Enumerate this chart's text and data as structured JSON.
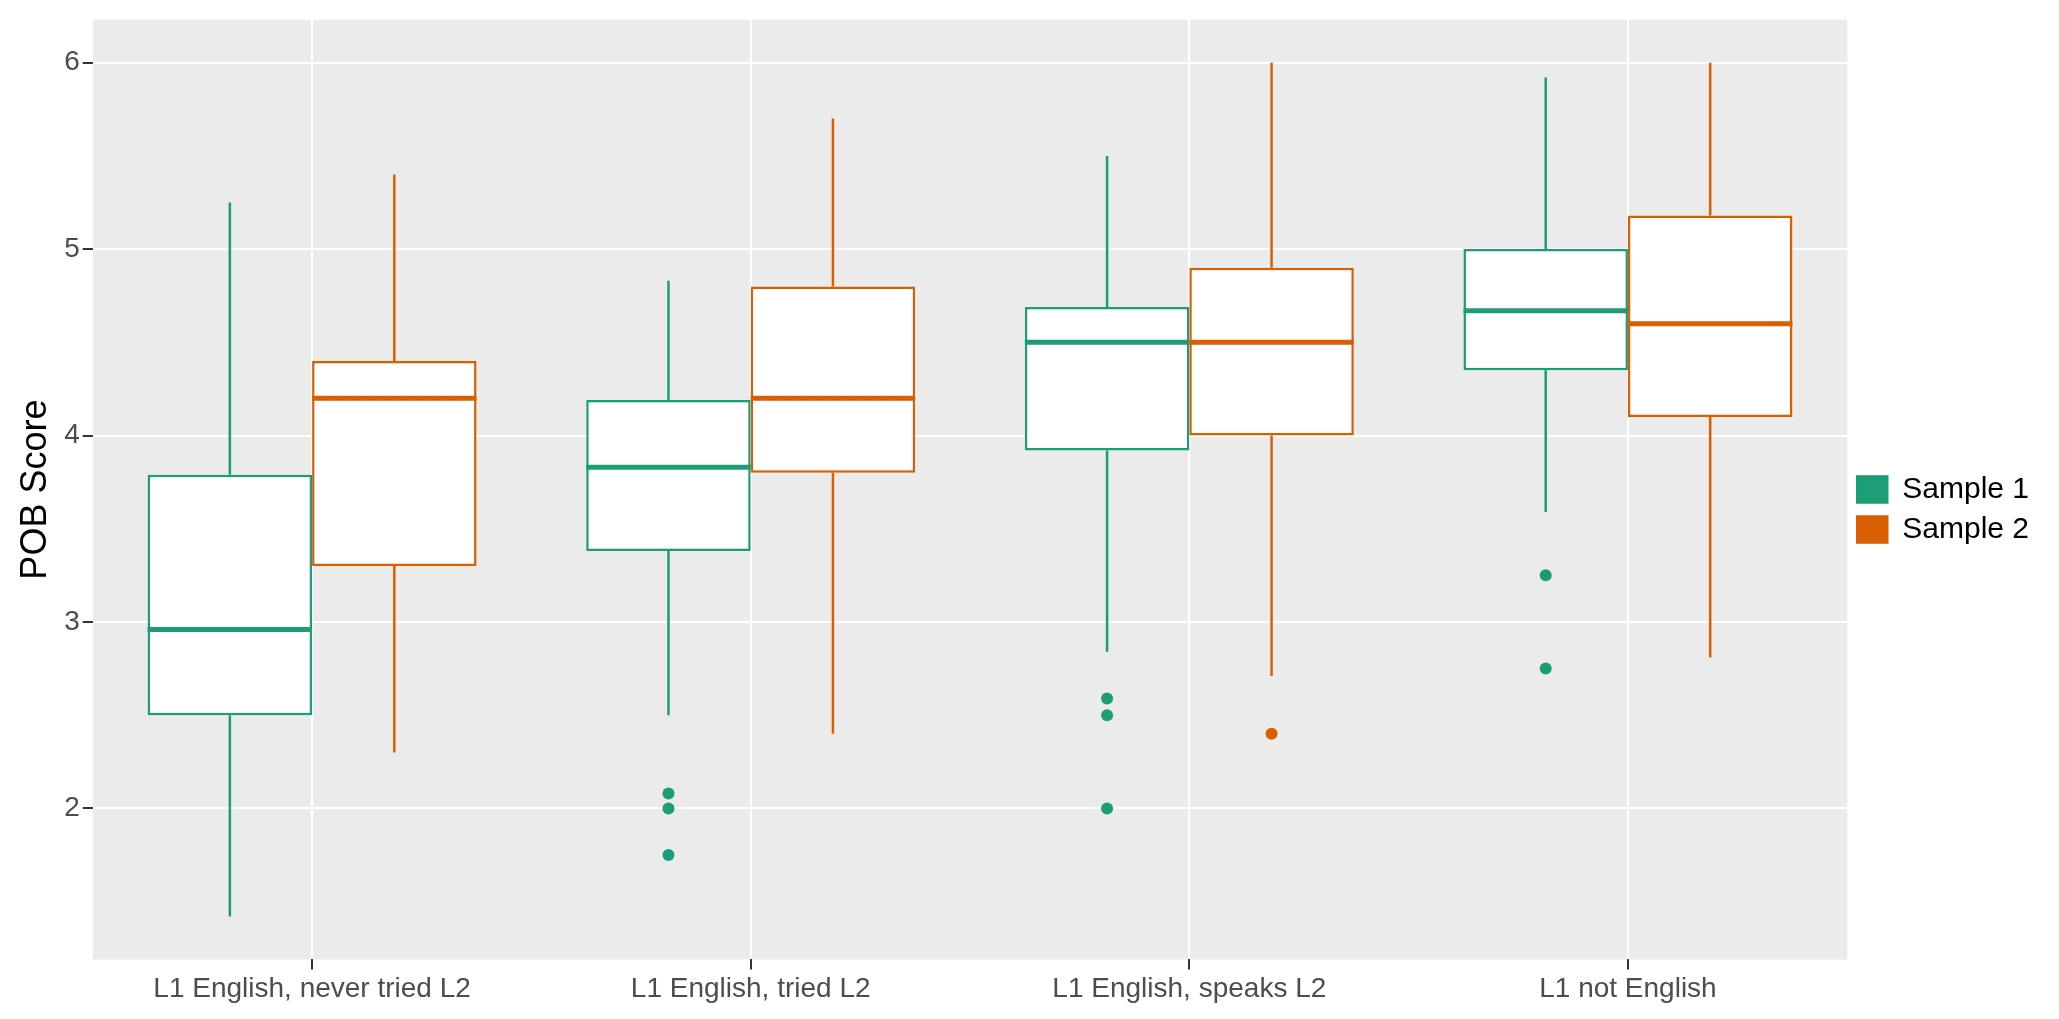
{
  "chart_data": {
    "type": "box",
    "ylabel": "POB Score",
    "categories": [
      "L1 English, never tried L2",
      "L1 English, tried L2",
      "L1 English, speaks L2",
      "L1 not English"
    ],
    "series": [
      {
        "name": "Sample 1",
        "color": "#1b9e77",
        "boxes": [
          {
            "low": 1.42,
            "q1": 2.5,
            "median": 2.96,
            "q3": 3.79,
            "high": 5.25
          },
          {
            "low": 2.5,
            "q1": 3.38,
            "median": 3.83,
            "q3": 4.19,
            "high": 4.83,
            "outliers": [
              2.08,
              2.0,
              1.75
            ]
          },
          {
            "low": 2.84,
            "q1": 3.92,
            "median": 4.5,
            "q3": 4.69,
            "high": 5.5,
            "outliers": [
              2.59,
              2.5,
              2.0
            ]
          },
          {
            "low": 3.59,
            "q1": 4.35,
            "median": 4.67,
            "q3": 5.0,
            "high": 5.92,
            "outliers": [
              3.25,
              2.75
            ]
          }
        ]
      },
      {
        "name": "Sample 2",
        "color": "#d95f02",
        "boxes": [
          {
            "low": 2.3,
            "q1": 3.3,
            "median": 4.2,
            "q3": 4.4,
            "high": 5.4
          },
          {
            "low": 2.4,
            "q1": 3.8,
            "median": 4.2,
            "q3": 4.8,
            "high": 5.7
          },
          {
            "low": 2.71,
            "q1": 4.0,
            "median": 4.5,
            "q3": 4.9,
            "high": 6.0,
            "outliers": [
              2.4
            ]
          },
          {
            "low": 2.81,
            "q1": 4.1,
            "median": 4.6,
            "q3": 5.18,
            "high": 6.0
          }
        ]
      }
    ],
    "ylim": [
      1.19,
      6.23
    ],
    "yticks": [
      2,
      3,
      4,
      5,
      6
    ],
    "grid": true,
    "legend": "right"
  }
}
